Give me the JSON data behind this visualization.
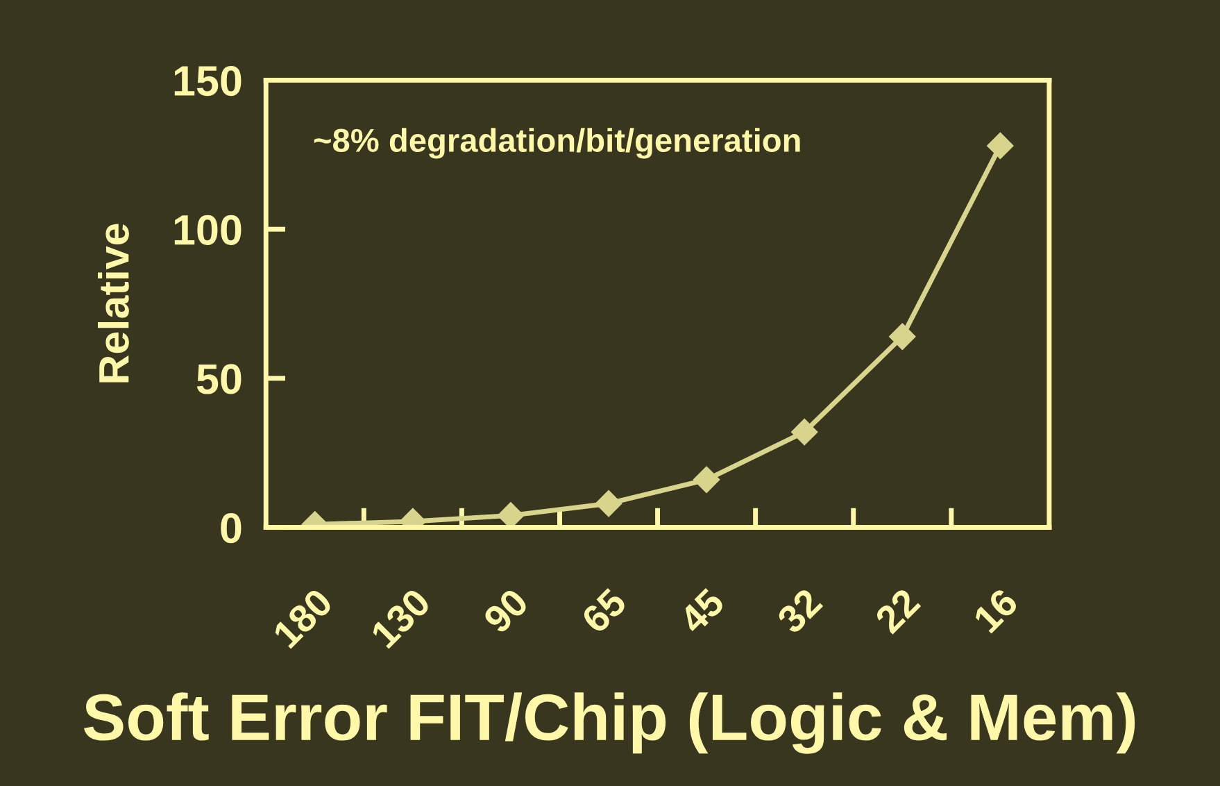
{
  "chart_data": {
    "type": "line",
    "xlabel": "Soft Error FIT/Chip (Logic & Mem)",
    "ylabel": "Relative",
    "categories": [
      "180",
      "130",
      "90",
      "65",
      "45",
      "32",
      "22",
      "16"
    ],
    "series": [
      {
        "color": "#d8d48c",
        "values": [
          1,
          2,
          4,
          8,
          16,
          32,
          64,
          128
        ]
      }
    ],
    "marker": "diamond",
    "line_style": "solid",
    "ylim": [
      0,
      150
    ],
    "yticks": [
      0,
      50,
      100,
      150
    ],
    "grid": false,
    "legend": false,
    "annotations": [
      "~8% degradation/bit/generation"
    ]
  }
}
